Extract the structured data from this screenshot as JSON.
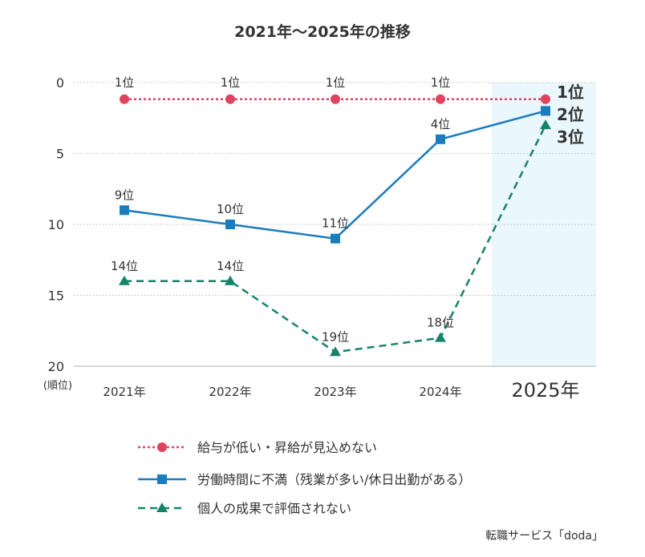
{
  "chart_data": {
    "type": "line",
    "title": "2021年～2025年の推移",
    "ylabel": "(順位)",
    "ylim": [
      0,
      20
    ],
    "y_inverted": true,
    "yticks": [
      "0",
      "5",
      "10",
      "15",
      "20"
    ],
    "categories": [
      "2021年",
      "2022年",
      "2023年",
      "2024年",
      "2025年"
    ],
    "highlight_category": "2025年",
    "highlight_color": "#eaf7fc",
    "grid": "horizontal dotted",
    "legend_placement": "bottom",
    "unit_suffix": "位",
    "series": [
      {
        "name": "給与が低い・昇給が見込めない",
        "values": [
          1,
          1,
          1,
          1,
          1
        ],
        "color": "#e0435f",
        "style": "dotted",
        "marker": "circle"
      },
      {
        "name": "労働時間に不満（残業が多い/休日出勤がある）",
        "values": [
          9,
          10,
          11,
          4,
          2
        ],
        "color": "#1a7bbd",
        "style": "solid",
        "marker": "square"
      },
      {
        "name": "個人の成果で評価されない",
        "values": [
          14,
          14,
          19,
          18,
          3
        ],
        "color": "#16826a",
        "style": "dashed",
        "marker": "triangle"
      }
    ],
    "source": "転職サービス「doda」"
  }
}
